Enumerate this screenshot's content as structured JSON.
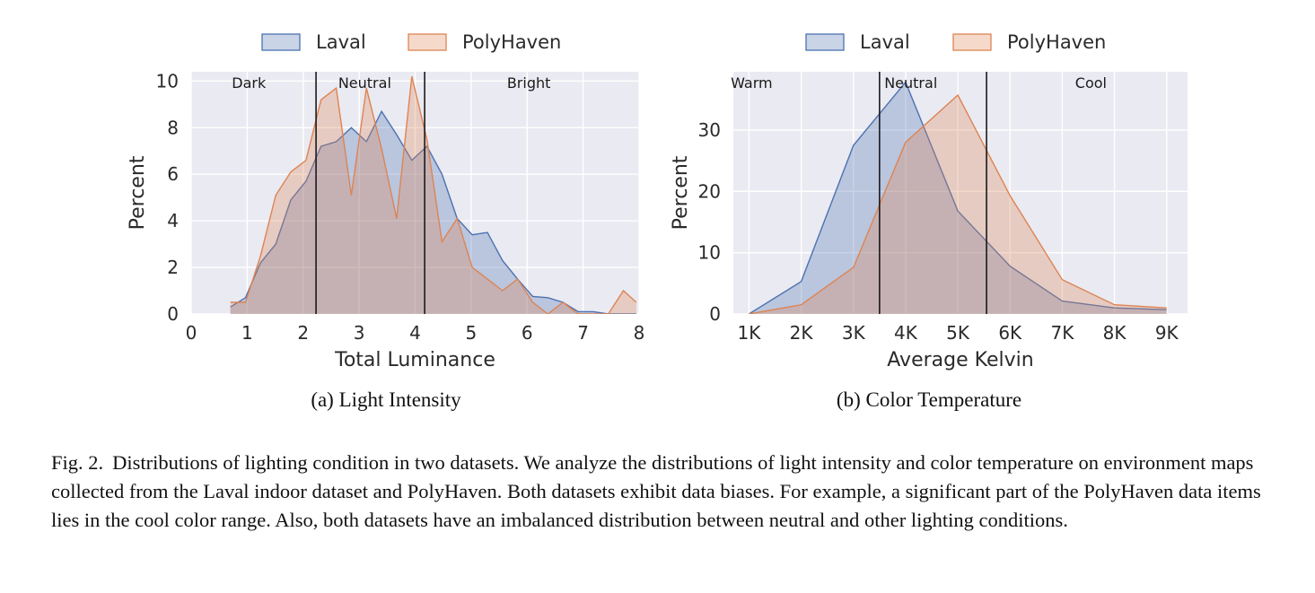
{
  "chart_data": [
    {
      "type": "area",
      "panel_caption": "(a) Light Intensity",
      "xlabel": "Total Luminance",
      "ylabel": "Percent",
      "xlim": [
        0,
        8
      ],
      "ylim": [
        0,
        10.4
      ],
      "xticks": [
        "0",
        "1",
        "2",
        "3",
        "4",
        "5",
        "6",
        "7",
        "8"
      ],
      "yticks": [
        "0",
        "2",
        "4",
        "6",
        "8",
        "10"
      ],
      "xtick_values": [
        0,
        1,
        2,
        3,
        4,
        5,
        6,
        7,
        8
      ],
      "ytick_values": [
        0,
        2,
        4,
        6,
        8,
        10
      ],
      "grid": true,
      "legend_position": "top",
      "region_lines": [
        2.23,
        4.17
      ],
      "regions": [
        {
          "label": "Dark",
          "x": 1.03
        },
        {
          "label": "Neutral",
          "x": 3.1
        },
        {
          "label": "Bright",
          "x": 6.03
        }
      ],
      "series": [
        {
          "name": "Laval",
          "color": "#4c72b0",
          "fill": "rgba(76,114,176,0.3)",
          "x": [
            0.7,
            0.97,
            1.24,
            1.51,
            1.78,
            2.05,
            2.32,
            2.59,
            2.86,
            3.13,
            3.4,
            3.67,
            3.94,
            4.21,
            4.48,
            4.75,
            5.02,
            5.29,
            5.56,
            5.83,
            6.1,
            6.37,
            6.64,
            6.91,
            7.18,
            7.45,
            7.72,
            7.95
          ],
          "values": [
            0.3,
            0.7,
            2.2,
            3.0,
            4.9,
            5.7,
            7.2,
            7.4,
            8.0,
            7.4,
            8.7,
            7.7,
            6.6,
            7.2,
            6.0,
            4.1,
            3.4,
            3.5,
            2.3,
            1.5,
            0.75,
            0.7,
            0.5,
            0.1,
            0.1,
            0.0,
            0.0,
            0.0
          ]
        },
        {
          "name": "PolyHaven",
          "color": "#dd8452",
          "fill": "rgba(221,132,82,0.3)",
          "x": [
            0.7,
            0.97,
            1.24,
            1.51,
            1.78,
            2.05,
            2.32,
            2.59,
            2.86,
            3.13,
            3.4,
            3.67,
            3.94,
            4.21,
            4.48,
            4.75,
            5.02,
            5.29,
            5.56,
            5.83,
            6.1,
            6.37,
            6.64,
            6.91,
            7.18,
            7.45,
            7.72,
            7.95
          ],
          "values": [
            0.5,
            0.5,
            2.5,
            5.1,
            6.1,
            6.6,
            9.2,
            9.7,
            5.1,
            9.7,
            7.1,
            4.1,
            10.2,
            7.5,
            3.1,
            4.1,
            2.0,
            1.5,
            1.0,
            1.5,
            0.5,
            0.0,
            0.5,
            0.0,
            0.0,
            0.0,
            1.0,
            0.5
          ]
        }
      ]
    },
    {
      "type": "area",
      "panel_caption": "(b) Color Temperature",
      "xlabel": "Average Kelvin",
      "ylabel": "Percent",
      "xlim": [
        0.7,
        9.4
      ],
      "ylim": [
        0,
        39.5
      ],
      "xticks": [
        "1K",
        "2K",
        "3K",
        "4K",
        "5K",
        "6K",
        "7K",
        "8K",
        "9K"
      ],
      "yticks": [
        "0",
        "10",
        "20",
        "30"
      ],
      "xtick_values": [
        1,
        2,
        3,
        4,
        5,
        6,
        7,
        8,
        9
      ],
      "ytick_values": [
        0,
        10,
        20,
        30
      ],
      "grid": true,
      "legend_position": "top",
      "region_lines": [
        3.5,
        5.55
      ],
      "regions": [
        {
          "label": "Warm",
          "x": 1.05
        },
        {
          "label": "Neutral",
          "x": 4.1
        },
        {
          "label": "Cool",
          "x": 7.55
        }
      ],
      "series": [
        {
          "name": "Laval",
          "color": "#4c72b0",
          "fill": "rgba(76,114,176,0.3)",
          "x": [
            1,
            2,
            3,
            4,
            5,
            6,
            7,
            8,
            9
          ],
          "values": [
            0,
            5.3,
            27.5,
            37.8,
            16.8,
            7.8,
            2.1,
            1.0,
            0.7
          ]
        },
        {
          "name": "PolyHaven",
          "color": "#dd8452",
          "fill": "rgba(221,132,82,0.3)",
          "x": [
            1,
            2,
            3,
            4,
            5,
            6,
            7,
            8,
            9
          ],
          "values": [
            0,
            1.5,
            7.6,
            28.0,
            35.7,
            19.3,
            5.6,
            1.5,
            1.0
          ]
        }
      ]
    }
  ],
  "figure_caption": {
    "label": "Fig. 2.",
    "text": "Distributions of lighting condition in two datasets. We analyze the distributions of light intensity and color temperature on environment maps collected from the Laval indoor dataset and PolyHaven. Both datasets exhibit data biases. For example, a significant part of the PolyHaven data items lies in the cool color range. Also, both datasets have an imbalanced distribution between neutral and other lighting conditions."
  }
}
